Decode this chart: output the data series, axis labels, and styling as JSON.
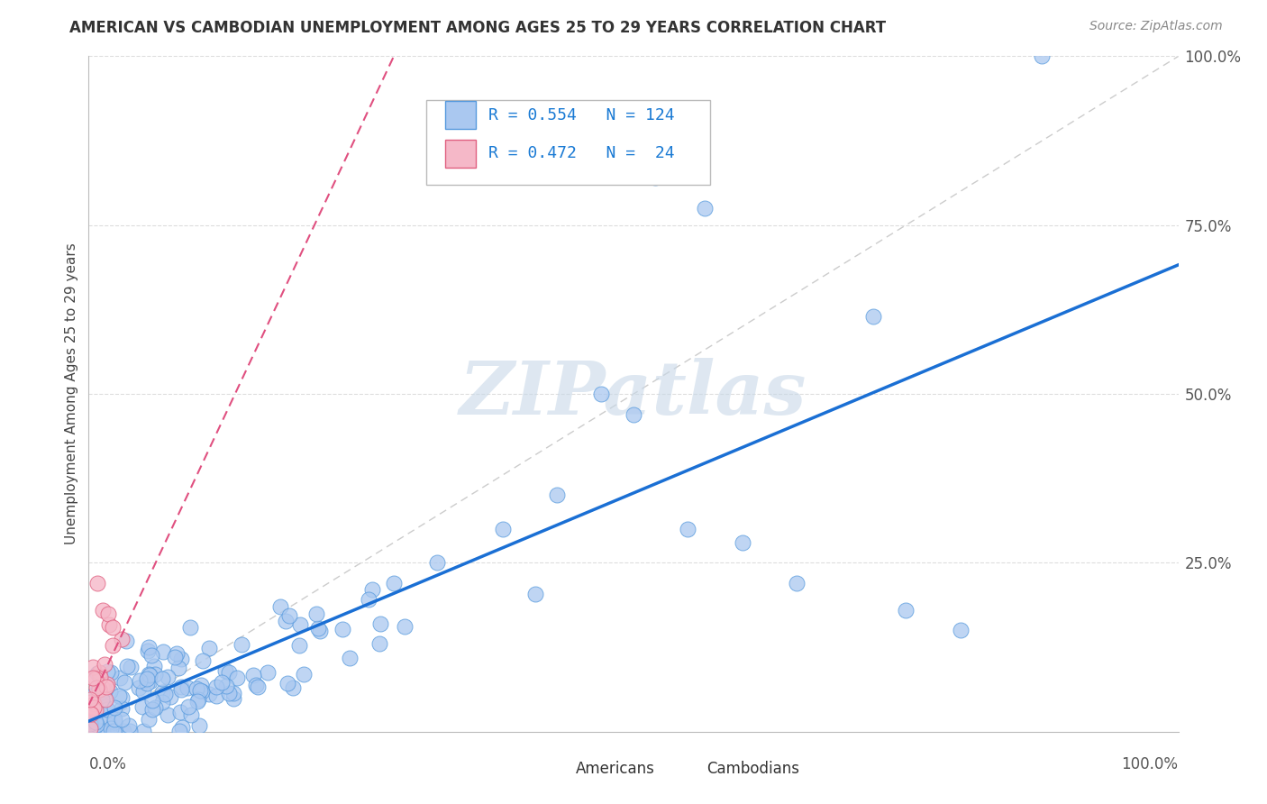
{
  "title": "AMERICAN VS CAMBODIAN UNEMPLOYMENT AMONG AGES 25 TO 29 YEARS CORRELATION CHART",
  "source": "Source: ZipAtlas.com",
  "ylabel": "Unemployment Among Ages 25 to 29 years",
  "legend_americans": "Americans",
  "legend_cambodians": "Cambodians",
  "R_american": 0.554,
  "N_american": 124,
  "R_cambodian": 0.472,
  "N_cambodian": 24,
  "american_face_color": "#aac8f0",
  "american_edge_color": "#5599dd",
  "cambodian_face_color": "#f5b8c8",
  "cambodian_edge_color": "#e06080",
  "trendline_american_color": "#1a6fd4",
  "trendline_cambodian_color": "#e05080",
  "diagonal_color": "#cccccc",
  "grid_color": "#dddddd",
  "watermark": "ZIPatlas",
  "watermark_color": "#c8d8e8",
  "bg_color": "#ffffff"
}
